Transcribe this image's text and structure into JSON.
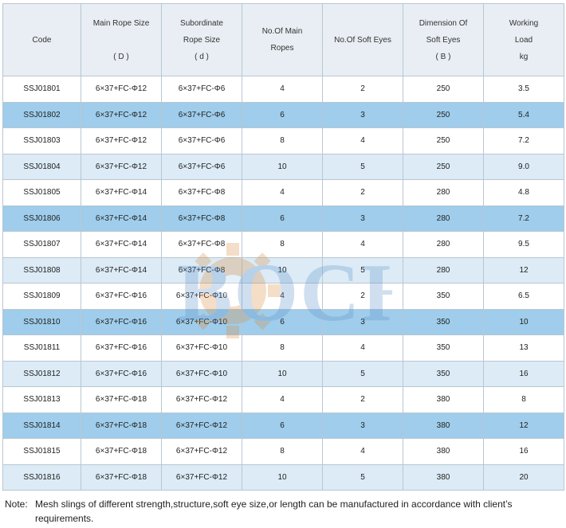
{
  "table": {
    "headers": {
      "code": [
        "Code"
      ],
      "main_rope": [
        "Main Rope Size",
        "",
        "( D )"
      ],
      "subordinate_rope": [
        "Subordinate",
        "Rope Size",
        "( d )"
      ],
      "main_ropes": [
        "No.Of Main",
        "Ropes"
      ],
      "soft_eyes": [
        "No.Of Soft Eyes"
      ],
      "dimension": [
        "Dimension Of",
        "Soft Eyes",
        "( B )"
      ],
      "working_load": [
        "Working",
        "Load",
        "kg"
      ]
    },
    "rows": [
      {
        "code": "SSJ01801",
        "main": "6×37+FC-Φ12",
        "sub": "6×37+FC-Φ6",
        "main_ropes": "4",
        "soft_eyes": "2",
        "dimension": "250",
        "load": "3.5",
        "shade": "white"
      },
      {
        "code": "SSJ01802",
        "main": "6×37+FC-Φ12",
        "sub": "6×37+FC-Φ6",
        "main_ropes": "6",
        "soft_eyes": "3",
        "dimension": "250",
        "load": "5.4",
        "shade": "dark"
      },
      {
        "code": "SSJ01803",
        "main": "6×37+FC-Φ12",
        "sub": "6×37+FC-Φ6",
        "main_ropes": "8",
        "soft_eyes": "4",
        "dimension": "250",
        "load": "7.2",
        "shade": "white"
      },
      {
        "code": "SSJ01804",
        "main": "6×37+FC-Φ12",
        "sub": "6×37+FC-Φ6",
        "main_ropes": "10",
        "soft_eyes": "5",
        "dimension": "250",
        "load": "9.0",
        "shade": "light"
      },
      {
        "code": "SSJ01805",
        "main": "6×37+FC-Φ14",
        "sub": "6×37+FC-Φ8",
        "main_ropes": "4",
        "soft_eyes": "2",
        "dimension": "280",
        "load": "4.8",
        "shade": "white"
      },
      {
        "code": "SSJ01806",
        "main": "6×37+FC-Φ14",
        "sub": "6×37+FC-Φ8",
        "main_ropes": "6",
        "soft_eyes": "3",
        "dimension": "280",
        "load": "7.2",
        "shade": "dark"
      },
      {
        "code": "SSJ01807",
        "main": "6×37+FC-Φ14",
        "sub": "6×37+FC-Φ8",
        "main_ropes": "8",
        "soft_eyes": "4",
        "dimension": "280",
        "load": "9.5",
        "shade": "white"
      },
      {
        "code": "SSJ01808",
        "main": "6×37+FC-Φ14",
        "sub": "6×37+FC-Φ8",
        "main_ropes": "10",
        "soft_eyes": "5",
        "dimension": "280",
        "load": "12",
        "shade": "light"
      },
      {
        "code": "SSJ01809",
        "main": "6×37+FC-Φ16",
        "sub": "6×37+FC-Φ10",
        "main_ropes": "4",
        "soft_eyes": "2",
        "dimension": "350",
        "load": "6.5",
        "shade": "white"
      },
      {
        "code": "SSJ01810",
        "main": "6×37+FC-Φ16",
        "sub": "6×37+FC-Φ10",
        "main_ropes": "6",
        "soft_eyes": "3",
        "dimension": "350",
        "load": "10",
        "shade": "dark"
      },
      {
        "code": "SSJ01811",
        "main": "6×37+FC-Φ16",
        "sub": "6×37+FC-Φ10",
        "main_ropes": "8",
        "soft_eyes": "4",
        "dimension": "350",
        "load": "13",
        "shade": "white"
      },
      {
        "code": "SSJ01812",
        "main": "6×37+FC-Φ16",
        "sub": "6×37+FC-Φ10",
        "main_ropes": "10",
        "soft_eyes": "5",
        "dimension": "350",
        "load": "16",
        "shade": "light"
      },
      {
        "code": "SSJ01813",
        "main": "6×37+FC-Φ18",
        "sub": "6×37+FC-Φ12",
        "main_ropes": "4",
        "soft_eyes": "2",
        "dimension": "380",
        "load": "8",
        "shade": "white"
      },
      {
        "code": "SSJ01814",
        "main": "6×37+FC-Φ18",
        "sub": "6×37+FC-Φ12",
        "main_ropes": "6",
        "soft_eyes": "3",
        "dimension": "380",
        "load": "12",
        "shade": "dark"
      },
      {
        "code": "SSJ01815",
        "main": "6×37+FC-Φ18",
        "sub": "6×37+FC-Φ12",
        "main_ropes": "8",
        "soft_eyes": "4",
        "dimension": "380",
        "load": "16",
        "shade": "white"
      },
      {
        "code": "SSJ01816",
        "main": "6×37+FC-Φ18",
        "sub": "6×37+FC-Φ12",
        "main_ropes": "10",
        "soft_eyes": "5",
        "dimension": "380",
        "load": "20",
        "shade": "light"
      }
    ]
  },
  "watermark": {
    "text": "BOCHI",
    "icon": "gear-icon"
  },
  "note": {
    "label": "Note:",
    "text": "Mesh slings of different strength,structure,soft eye size,or length can be manufactured in accordance with client’s requirements."
  }
}
